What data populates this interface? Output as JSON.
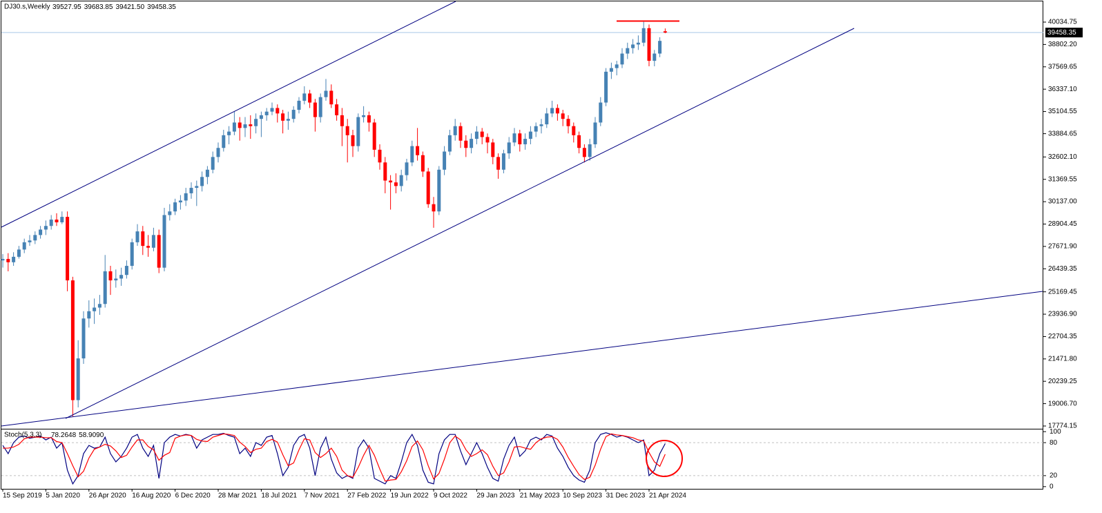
{
  "chart_data": {
    "type": "candlestick",
    "symbol": "DJ30.s,Weekly",
    "header_values": [
      {
        "value": 39527.95,
        "label": "39527.95"
      },
      {
        "value": 39683.85,
        "label": "39683.85"
      },
      {
        "value": 39421.5,
        "label": "39421.50"
      },
      {
        "value": 39458.35,
        "label": "39458.35"
      }
    ],
    "categories": [
      "15 Sep 2019",
      null,
      null,
      null,
      null,
      null,
      null,
      null,
      "5 Jan 2020",
      null,
      null,
      null,
      null,
      null,
      null,
      null,
      "26 Apr 2020",
      null,
      null,
      null,
      null,
      null,
      null,
      null,
      "16 Aug 2020",
      null,
      null,
      null,
      null,
      null,
      null,
      null,
      "6 Dec 2020",
      null,
      null,
      null,
      null,
      null,
      null,
      null,
      "28 Mar 2021",
      null,
      null,
      null,
      null,
      null,
      null,
      null,
      "18 Jul 2021",
      null,
      null,
      null,
      null,
      null,
      null,
      null,
      "7 Nov 2021",
      null,
      null,
      null,
      null,
      null,
      null,
      null,
      "27 Feb 2022",
      null,
      null,
      null,
      null,
      null,
      null,
      null,
      "19 Jun 2022",
      null,
      null,
      null,
      null,
      null,
      null,
      null,
      "9 Oct 2022",
      null,
      null,
      null,
      null,
      null,
      null,
      null,
      "29 Jan 2023",
      null,
      null,
      null,
      null,
      null,
      null,
      null,
      "21 May 2023",
      null,
      null,
      null,
      null,
      null,
      null,
      null,
      "10 Sep 2023",
      null,
      null,
      null,
      null,
      null,
      null,
      null,
      "31 Dec 2023",
      null,
      null,
      null,
      null,
      null,
      null,
      null,
      "21 Apr 2024",
      null,
      null,
      null
    ],
    "open": [
      26900,
      26980,
      26800,
      27100,
      27500,
      27900,
      28000,
      28300,
      28600,
      28800,
      29150,
      29000,
      29300,
      25800,
      19200,
      21500,
      23700,
      24100,
      24300,
      24500,
      26300,
      25800,
      25900,
      26100,
      26600,
      27900,
      28500,
      27700,
      27600,
      28300,
      26500,
      29400,
      29600,
      30100,
      30200,
      30600,
      30900,
      31000,
      31500,
      31900,
      32600,
      33100,
      33800,
      34000,
      34500,
      34200,
      34400,
      34300,
      34700,
      34900,
      35100,
      35300,
      35000,
      34600,
      34700,
      35200,
      35700,
      36100,
      35600,
      34800,
      35900,
      36250,
      35500,
      34900,
      34300,
      33800,
      33200,
      34800,
      34900,
      34500,
      33000,
      32300,
      31300,
      31200,
      31000,
      31600,
      32300,
      33200,
      32700,
      31800,
      30000,
      29600,
      31900,
      32900,
      33800,
      34300,
      33500,
      33100,
      33600,
      34000,
      33700,
      33400,
      32600,
      31900,
      32800,
      33400,
      33900,
      33300,
      33600,
      34000,
      34300,
      34400,
      35000,
      35300,
      35000,
      34700,
      34300,
      33800,
      33100,
      32600,
      33300,
      34500,
      35600,
      37300,
      37500,
      37700,
      38300,
      38600,
      38800,
      38900,
      39700,
      37900,
      38300,
      39527.95
    ],
    "high": [
      27250,
      27300,
      27350,
      27700,
      28100,
      28300,
      28500,
      28800,
      29100,
      29400,
      29500,
      29600,
      29600,
      26000,
      22500,
      24100,
      24700,
      24800,
      25000,
      27200,
      26600,
      26400,
      26500,
      26900,
      28100,
      28900,
      28800,
      28300,
      28700,
      28600,
      29800,
      30000,
      30300,
      30500,
      30900,
      31200,
      31300,
      31800,
      32100,
      32900,
      33400,
      34100,
      34300,
      35100,
      34800,
      34800,
      34900,
      35000,
      35100,
      35300,
      35600,
      35500,
      35200,
      35100,
      35400,
      35900,
      36500,
      36300,
      35800,
      36100,
      36900,
      36600,
      35800,
      35300,
      34700,
      34100,
      35000,
      35400,
      35100,
      34700,
      33300,
      32600,
      31600,
      31700,
      31900,
      32500,
      33500,
      34200,
      32900,
      32000,
      30400,
      32100,
      33200,
      34100,
      34700,
      34500,
      33800,
      33900,
      34300,
      34200,
      33900,
      33600,
      32800,
      33000,
      33700,
      34200,
      34100,
      33900,
      34300,
      34500,
      34700,
      35300,
      35700,
      35500,
      35200,
      34900,
      34500,
      34000,
      33300,
      33600,
      34800,
      35900,
      37500,
      37800,
      37900,
      38600,
      38900,
      39100,
      39300,
      40050,
      39900,
      38500,
      39200,
      39683.85
    ],
    "low": [
      26500,
      26300,
      26600,
      27000,
      27300,
      27700,
      27800,
      28100,
      28300,
      28600,
      28800,
      28900,
      25200,
      18300,
      18800,
      21200,
      23200,
      23400,
      23900,
      24300,
      25000,
      25400,
      25500,
      25900,
      26400,
      27700,
      27200,
      27100,
      27400,
      26200,
      26300,
      29100,
      29400,
      29700,
      29900,
      30300,
      29900,
      30700,
      31100,
      31700,
      32300,
      32900,
      33300,
      33800,
      33500,
      33700,
      33600,
      33900,
      33700,
      34600,
      34900,
      34500,
      33900,
      34100,
      34500,
      35000,
      35500,
      35300,
      34000,
      34500,
      35700,
      35300,
      34600,
      33200,
      32300,
      32600,
      32900,
      34500,
      34000,
      32600,
      31900,
      30600,
      29700,
      30600,
      30700,
      31300,
      32100,
      32400,
      31500,
      29800,
      28700,
      29400,
      31600,
      32700,
      33500,
      33100,
      32600,
      32800,
      33300,
      33300,
      32800,
      32200,
      31400,
      31700,
      32500,
      33200,
      32900,
      33000,
      33300,
      33700,
      33900,
      34200,
      34800,
      34600,
      34300,
      33900,
      33400,
      32800,
      32300,
      32400,
      33100,
      34300,
      35400,
      36900,
      37100,
      37500,
      38000,
      38300,
      38500,
      38700,
      37600,
      37600,
      38100,
      39421.5
    ],
    "close": [
      26980,
      26800,
      27100,
      27500,
      27900,
      28000,
      28300,
      28600,
      28800,
      29150,
      29000,
      29300,
      25800,
      19200,
      21500,
      23700,
      24100,
      24300,
      24500,
      26300,
      25800,
      25900,
      26100,
      26600,
      27900,
      28500,
      27700,
      27600,
      28300,
      26500,
      29400,
      29600,
      30100,
      30200,
      30600,
      30900,
      31000,
      31500,
      31900,
      32600,
      33100,
      33800,
      34000,
      34500,
      34200,
      34400,
      34300,
      34700,
      34900,
      35100,
      35300,
      35000,
      34600,
      34700,
      35200,
      35700,
      36100,
      35600,
      34800,
      35900,
      36250,
      35500,
      34900,
      34300,
      33800,
      33200,
      34800,
      34900,
      34500,
      33000,
      32300,
      31300,
      31200,
      31000,
      31600,
      32300,
      33200,
      32700,
      31800,
      30000,
      29600,
      31900,
      32900,
      33800,
      34300,
      33500,
      33100,
      33600,
      34000,
      33700,
      33400,
      32600,
      31900,
      32800,
      33400,
      33900,
      33300,
      33600,
      34000,
      34300,
      34400,
      35000,
      35300,
      35000,
      34700,
      34300,
      33800,
      33100,
      32600,
      33300,
      34500,
      35600,
      37300,
      37500,
      37700,
      38300,
      38600,
      38800,
      38900,
      39700,
      37900,
      38300,
      39000,
      39458.35
    ],
    "up_color": "#4682b4",
    "down_color": "#ff0000",
    "ylim": [
      17622,
      41176
    ],
    "yticks": [
      40034.75,
      {
        "value": 38802.2,
        "label": "38802.20"
      },
      37569.65,
      {
        "value": 36337.1,
        "label": "36337.10"
      },
      35104.55,
      33884.65,
      {
        "value": 32602.1,
        "label": "32602.10"
      },
      31369.55,
      {
        "value": 30137,
        "label": "30137.00"
      },
      28904.45,
      {
        "value": 27671.9,
        "label": "27671.90"
      },
      26439.35,
      25169.45,
      {
        "value": 23936.9,
        "label": "23936.90"
      },
      22704.35,
      {
        "value": 21471.8,
        "label": "21471.80"
      },
      20239.25,
      {
        "value": 19006.7,
        "label": "19006.70"
      },
      17774.15
    ],
    "current_price": {
      "value": 39458.35,
      "label": "39458.35"
    },
    "indicator": {
      "type": "line",
      "label": "Stoch(5,3,3)",
      "readout": [
        78.2648,
        {
          "value": 58.909,
          "label": "58.9090"
        }
      ],
      "ylim": [
        -4,
        104
      ],
      "yticks": [
        100,
        80,
        20,
        0
      ],
      "levels": [
        80,
        20
      ],
      "series": [
        {
          "color": "#000080",
          "values": [
            75,
            60,
            80,
            90,
            92,
            88,
            90,
            92,
            85,
            90,
            70,
            80,
            30,
            5,
            20,
            60,
            75,
            70,
            72,
            90,
            60,
            45,
            55,
            70,
            90,
            95,
            70,
            55,
            75,
            15,
            80,
            90,
            95,
            92,
            95,
            93,
            70,
            85,
            90,
            95,
            95,
            97,
            93,
            90,
            60,
            70,
            55,
            80,
            75,
            90,
            93,
            60,
            20,
            35,
            75,
            90,
            95,
            70,
            20,
            70,
            90,
            50,
            25,
            15,
            20,
            15,
            70,
            85,
            70,
            15,
            10,
            5,
            20,
            15,
            45,
            80,
            95,
            75,
            30,
            8,
            5,
            60,
            85,
            95,
            95,
            65,
            40,
            60,
            80,
            60,
            35,
            15,
            10,
            50,
            75,
            90,
            55,
            65,
            85,
            90,
            85,
            95,
            92,
            70,
            55,
            35,
            20,
            12,
            8,
            30,
            80,
            95,
            98,
            95,
            90,
            93,
            90,
            85,
            80,
            85,
            20,
            30,
            60,
            78.2648
          ]
        },
        {
          "color": "#ff0000",
          "values": [
            70,
            70,
            72,
            77,
            87,
            90,
            90,
            90,
            89,
            89,
            82,
            80,
            60,
            38,
            18,
            28,
            52,
            68,
            72,
            77,
            74,
            65,
            53,
            57,
            72,
            85,
            85,
            73,
            67,
            48,
            57,
            62,
            88,
            92,
            94,
            93,
            86,
            83,
            82,
            90,
            93,
            96,
            95,
            93,
            81,
            73,
            62,
            68,
            70,
            82,
            86,
            81,
            58,
            38,
            43,
            67,
            87,
            85,
            62,
            53,
            60,
            70,
            55,
            30,
            20,
            17,
            35,
            57,
            75,
            57,
            32,
            10,
            12,
            13,
            27,
            47,
            73,
            83,
            67,
            38,
            14,
            24,
            50,
            80,
            92,
            85,
            67,
            55,
            60,
            67,
            58,
            37,
            20,
            25,
            45,
            72,
            73,
            70,
            68,
            80,
            87,
            90,
            91,
            86,
            72,
            53,
            37,
            22,
            13,
            17,
            39,
            68,
            91,
            96,
            94,
            93,
            91,
            89,
            85,
            83,
            62,
            45,
            37,
            58.909
          ]
        }
      ]
    }
  }
}
